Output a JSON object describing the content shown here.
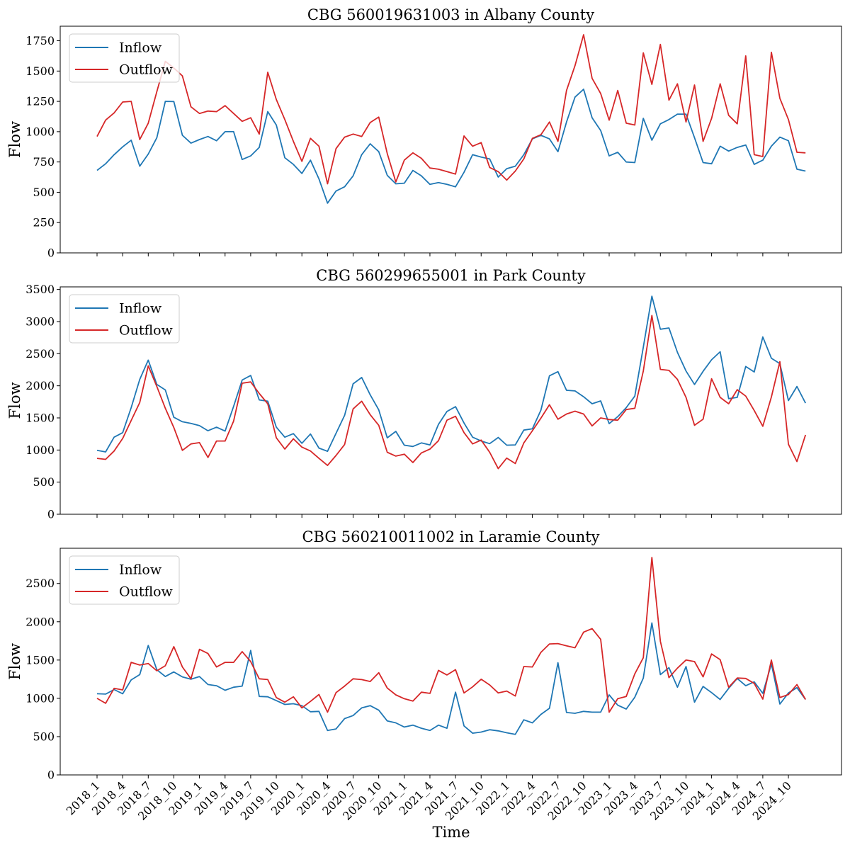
{
  "figure": {
    "xlabel": "Time",
    "x_tick_labels": [
      "2018_1",
      "2018_4",
      "2018_7",
      "2018_10",
      "2019_1",
      "2019_4",
      "2019_7",
      "2019_10",
      "2020_1",
      "2020_4",
      "2020_7",
      "2020_10",
      "2021_1",
      "2021_4",
      "2021_7",
      "2021_10",
      "2022_1",
      "2022_4",
      "2022_7",
      "2022_10",
      "2023_1",
      "2023_4",
      "2023_7",
      "2023_10",
      "2024_1",
      "2024_4",
      "2024_7",
      "2024_10"
    ],
    "colors": {
      "inflow": "#1f77b4",
      "outflow": "#d62728"
    }
  },
  "chart_data": [
    {
      "type": "line",
      "title": "CBG 560019631003 in Albany County",
      "ylabel": "Flow",
      "xlabel": "",
      "ylim": [
        0,
        1870
      ],
      "yticks": [
        0,
        250,
        500,
        750,
        1000,
        1250,
        1500,
        1750
      ],
      "legend": "top-left",
      "series": [
        {
          "name": "Inflow",
          "values": [
            680,
            735,
            810,
            875,
            930,
            715,
            815,
            950,
            1250,
            1248,
            970,
            905,
            935,
            960,
            925,
            1000,
            1000,
            770,
            800,
            870,
            1165,
            1055,
            785,
            730,
            655,
            765,
            610,
            410,
            510,
            545,
            635,
            810,
            900,
            835,
            640,
            570,
            575,
            680,
            635,
            565,
            580,
            565,
            545,
            665,
            810,
            790,
            775,
            625,
            695,
            715,
            810,
            940,
            970,
            940,
            835,
            1080,
            1285,
            1350,
            1115,
            1010,
            800,
            830,
            750,
            745,
            1110,
            930,
            1065,
            1100,
            1145,
            1145,
            950,
            745,
            735,
            880,
            840,
            870,
            890,
            730,
            765,
            880,
            955,
            925,
            690,
            675
          ]
        },
        {
          "name": "Outflow",
          "values": [
            960,
            1095,
            1155,
            1245,
            1250,
            935,
            1070,
            1330,
            1580,
            1525,
            1460,
            1205,
            1150,
            1170,
            1165,
            1215,
            1150,
            1085,
            1115,
            980,
            1490,
            1265,
            1100,
            920,
            755,
            945,
            880,
            570,
            860,
            955,
            980,
            960,
            1075,
            1120,
            820,
            585,
            765,
            825,
            780,
            700,
            690,
            670,
            650,
            965,
            880,
            910,
            705,
            670,
            600,
            675,
            775,
            945,
            975,
            1080,
            920,
            1340,
            1545,
            1800,
            1440,
            1315,
            1095,
            1340,
            1070,
            1055,
            1650,
            1390,
            1720,
            1260,
            1395,
            1080,
            1385,
            920,
            1110,
            1395,
            1135,
            1065,
            1625,
            810,
            795,
            1655,
            1275,
            1100,
            830,
            825
          ]
        }
      ]
    },
    {
      "type": "line",
      "title": "CBG 560299655001 in Park County",
      "ylabel": "Flow",
      "xlabel": "",
      "ylim": [
        0,
        3540
      ],
      "yticks": [
        0,
        500,
        1000,
        1500,
        2000,
        2500,
        3000,
        3500
      ],
      "legend": "top-left",
      "series": [
        {
          "name": "Inflow",
          "values": [
            995,
            970,
            1200,
            1270,
            1660,
            2100,
            2400,
            2020,
            1935,
            1510,
            1440,
            1415,
            1380,
            1300,
            1355,
            1295,
            1680,
            2090,
            2160,
            1780,
            1760,
            1355,
            1200,
            1255,
            1105,
            1250,
            1030,
            980,
            1260,
            1540,
            2030,
            2130,
            1860,
            1625,
            1190,
            1290,
            1075,
            1055,
            1110,
            1080,
            1400,
            1600,
            1675,
            1420,
            1200,
            1140,
            1100,
            1195,
            1075,
            1080,
            1310,
            1330,
            1620,
            2155,
            2220,
            1930,
            1920,
            1830,
            1720,
            1765,
            1410,
            1520,
            1660,
            1840,
            2600,
            3395,
            2880,
            2900,
            2520,
            2230,
            2020,
            2225,
            2405,
            2530,
            1800,
            1820,
            2300,
            2215,
            2760,
            2430,
            2345,
            1770,
            1990,
            1730
          ]
        },
        {
          "name": "Outflow",
          "values": [
            870,
            855,
            985,
            1180,
            1460,
            1740,
            2310,
            1990,
            1650,
            1350,
            995,
            1095,
            1115,
            885,
            1140,
            1140,
            1450,
            2040,
            2060,
            1880,
            1720,
            1190,
            1015,
            1175,
            1045,
            985,
            870,
            760,
            915,
            1085,
            1640,
            1760,
            1550,
            1385,
            965,
            905,
            935,
            805,
            955,
            1015,
            1145,
            1465,
            1525,
            1270,
            1095,
            1155,
            965,
            710,
            875,
            790,
            1110,
            1300,
            1495,
            1705,
            1480,
            1560,
            1605,
            1560,
            1375,
            1500,
            1475,
            1465,
            1630,
            1650,
            2230,
            3095,
            2255,
            2240,
            2100,
            1820,
            1385,
            1480,
            2110,
            1820,
            1720,
            1940,
            1840,
            1615,
            1370,
            1825,
            2375,
            1090,
            820,
            1235
          ]
        }
      ]
    },
    {
      "type": "line",
      "title": "CBG 560210011002 in Laramie County",
      "ylabel": "Flow",
      "xlabel": "Time",
      "ylim": [
        0,
        2960
      ],
      "yticks": [
        0,
        500,
        1000,
        1500,
        2000,
        2500
      ],
      "legend": "top-left",
      "series": [
        {
          "name": "Inflow",
          "values": [
            1060,
            1055,
            1115,
            1060,
            1240,
            1310,
            1690,
            1375,
            1285,
            1345,
            1280,
            1250,
            1285,
            1180,
            1165,
            1105,
            1145,
            1160,
            1625,
            1025,
            1020,
            970,
            920,
            930,
            905,
            825,
            830,
            580,
            600,
            735,
            775,
            875,
            905,
            845,
            705,
            680,
            625,
            650,
            610,
            580,
            650,
            610,
            1080,
            640,
            545,
            560,
            590,
            575,
            550,
            530,
            720,
            680,
            790,
            870,
            1465,
            815,
            805,
            830,
            820,
            820,
            1045,
            910,
            860,
            1015,
            1265,
            1985,
            1310,
            1400,
            1145,
            1415,
            950,
            1155,
            1075,
            985,
            1130,
            1260,
            1165,
            1215,
            1065,
            1450,
            925,
            1070,
            1140,
            985
          ]
        },
        {
          "name": "Outflow",
          "values": [
            1000,
            935,
            1130,
            1110,
            1470,
            1435,
            1455,
            1360,
            1425,
            1675,
            1410,
            1255,
            1640,
            1585,
            1410,
            1470,
            1470,
            1610,
            1480,
            1255,
            1245,
            1010,
            950,
            1020,
            875,
            960,
            1050,
            820,
            1075,
            1160,
            1255,
            1245,
            1220,
            1335,
            1135,
            1045,
            995,
            965,
            1080,
            1065,
            1365,
            1305,
            1375,
            1070,
            1150,
            1250,
            1175,
            1070,
            1095,
            1030,
            1415,
            1410,
            1600,
            1710,
            1715,
            1685,
            1660,
            1865,
            1910,
            1770,
            820,
            995,
            1025,
            1320,
            1530,
            2840,
            1745,
            1270,
            1395,
            1500,
            1480,
            1280,
            1580,
            1505,
            1145,
            1265,
            1260,
            1195,
            990,
            1500,
            1010,
            1050,
            1180,
            985
          ]
        }
      ]
    }
  ]
}
